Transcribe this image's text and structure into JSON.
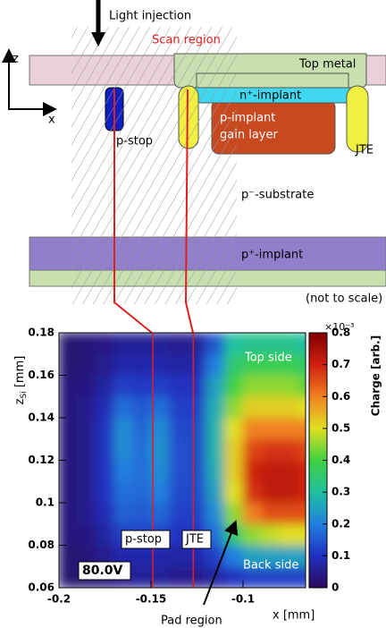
{
  "diagram": {
    "light_injection": "Light injection",
    "scan_region": "Scan region",
    "axis_z": "z",
    "axis_x": "x",
    "top_metal": "Top metal",
    "n_implant": "n⁺-implant",
    "gain_layer": [
      "p-implant",
      "gain layer"
    ],
    "p_stop": "p-stop",
    "jte": "JTE",
    "substrate": "p⁻-substrate",
    "p_plus": "p⁺-implant",
    "note": "(not to scale)"
  },
  "chart_data": {
    "type": "heatmap",
    "xlabel": "x [mm]",
    "ylabel": "z",
    "ylabel_sub": "Si",
    "ylabel_unit": " [mm]",
    "zlabel": "Charge [arb.]",
    "zmultiplier": "×10⁻³",
    "xlim": [
      -0.2,
      -0.066
    ],
    "ylim": [
      0.06,
      0.18
    ],
    "zlim": [
      0,
      0.8
    ],
    "xticks": [
      -0.2,
      -0.15,
      -0.1
    ],
    "yticks": [
      0.06,
      0.08,
      0.1,
      0.12,
      0.14,
      0.16,
      0.18
    ],
    "zticks": [
      0,
      0.1,
      0.2,
      0.3,
      0.4,
      0.5,
      0.6,
      0.7,
      0.8
    ],
    "colormap": [
      "#2a0a5a",
      "#2030c0",
      "#2080e0",
      "#20c0a0",
      "#40d040",
      "#e0e020",
      "#f08020",
      "#d02010",
      "#800000"
    ],
    "x": [
      -0.195,
      -0.185,
      -0.175,
      -0.165,
      -0.155,
      -0.145,
      -0.135,
      -0.125,
      -0.115,
      -0.105,
      -0.095,
      -0.085,
      -0.075,
      -0.065
    ],
    "y": [
      0.065,
      0.075,
      0.085,
      0.095,
      0.105,
      0.115,
      0.125,
      0.135,
      0.145,
      0.155,
      0.165,
      0.175
    ],
    "z": [
      [
        0.02,
        0.02,
        0.03,
        0.05,
        0.06,
        0.06,
        0.05,
        0.05,
        0.07,
        0.1,
        0.12,
        0.12,
        0.12,
        0.12
      ],
      [
        0.02,
        0.03,
        0.05,
        0.08,
        0.08,
        0.08,
        0.07,
        0.08,
        0.12,
        0.2,
        0.25,
        0.25,
        0.25,
        0.25
      ],
      [
        0.03,
        0.04,
        0.07,
        0.12,
        0.12,
        0.12,
        0.1,
        0.1,
        0.18,
        0.35,
        0.45,
        0.48,
        0.5,
        0.5
      ],
      [
        0.03,
        0.05,
        0.09,
        0.16,
        0.15,
        0.17,
        0.12,
        0.12,
        0.22,
        0.45,
        0.6,
        0.65,
        0.65,
        0.65
      ],
      [
        0.03,
        0.05,
        0.1,
        0.18,
        0.17,
        0.2,
        0.13,
        0.13,
        0.25,
        0.5,
        0.68,
        0.72,
        0.72,
        0.7
      ],
      [
        0.03,
        0.05,
        0.1,
        0.2,
        0.18,
        0.22,
        0.14,
        0.13,
        0.27,
        0.52,
        0.7,
        0.72,
        0.72,
        0.7
      ],
      [
        0.03,
        0.05,
        0.1,
        0.22,
        0.18,
        0.23,
        0.14,
        0.13,
        0.28,
        0.52,
        0.66,
        0.68,
        0.68,
        0.66
      ],
      [
        0.03,
        0.05,
        0.1,
        0.22,
        0.17,
        0.22,
        0.13,
        0.13,
        0.28,
        0.5,
        0.6,
        0.6,
        0.6,
        0.6
      ],
      [
        0.03,
        0.05,
        0.09,
        0.18,
        0.15,
        0.18,
        0.12,
        0.12,
        0.27,
        0.45,
        0.52,
        0.52,
        0.52,
        0.5
      ],
      [
        0.03,
        0.04,
        0.07,
        0.12,
        0.11,
        0.12,
        0.1,
        0.1,
        0.25,
        0.4,
        0.45,
        0.45,
        0.45,
        0.42
      ],
      [
        0.02,
        0.03,
        0.05,
        0.08,
        0.08,
        0.08,
        0.07,
        0.08,
        0.2,
        0.35,
        0.38,
        0.38,
        0.38,
        0.36
      ],
      [
        0.02,
        0.03,
        0.04,
        0.06,
        0.06,
        0.06,
        0.05,
        0.06,
        0.15,
        0.3,
        0.32,
        0.32,
        0.32,
        0.3
      ]
    ],
    "vlines": [
      -0.149,
      -0.127
    ],
    "vline_color": "#e02020",
    "annotations": {
      "top_side": "Top side",
      "back_side": "Back side",
      "p_stop": "p-stop",
      "jte": "JTE",
      "voltage": "80.0V",
      "pad_region": "Pad region"
    }
  }
}
